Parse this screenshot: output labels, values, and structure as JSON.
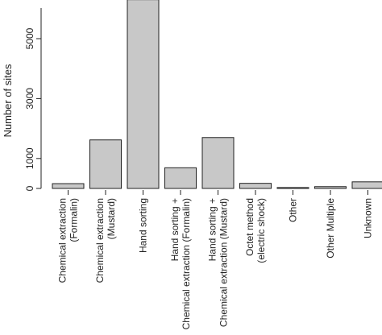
{
  "chart_data": {
    "type": "bar",
    "ylabel": "Number of sites",
    "categories": [
      "Chemical extraction\n(Formalin)",
      "Chemical extraction\n(Mustard)",
      "Hand sorting",
      "Hand sorting +\nChemical extraction (Formalin)",
      "Hand sorting +\nChemical extraction (Mustard)",
      "Octet method\n(electric shock)",
      "Other",
      "Other Multiple",
      "Unknown"
    ],
    "values": [
      160,
      1620,
      6300,
      690,
      1700,
      170,
      30,
      60,
      220
    ],
    "yticks": [
      0,
      1000,
      3000,
      5000
    ],
    "ylim": [
      0,
      6000
    ],
    "bar_color": "#c8c8c8",
    "edge_color": "#222222"
  }
}
